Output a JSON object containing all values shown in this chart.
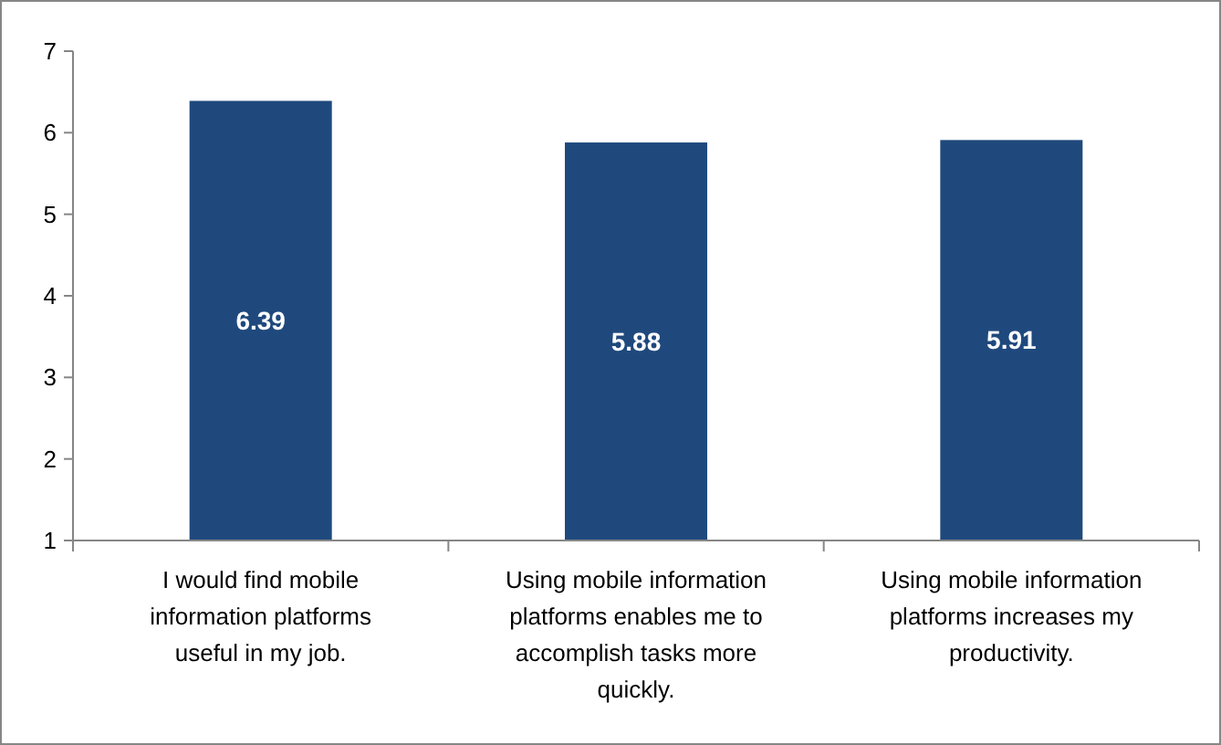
{
  "chart_data": {
    "type": "bar",
    "categories": [
      "I would find mobile information platforms useful in my job.",
      "Using mobile information platforms enables me to accomplish tasks more quickly.",
      "Using mobile information platforms increases my productivity."
    ],
    "values": [
      6.39,
      5.88,
      5.91
    ],
    "color": "#1f497d",
    "ylim": [
      1,
      7
    ],
    "yticks": [
      1,
      2,
      3,
      4,
      5,
      6,
      7
    ],
    "grid": false,
    "data_labels": true
  }
}
